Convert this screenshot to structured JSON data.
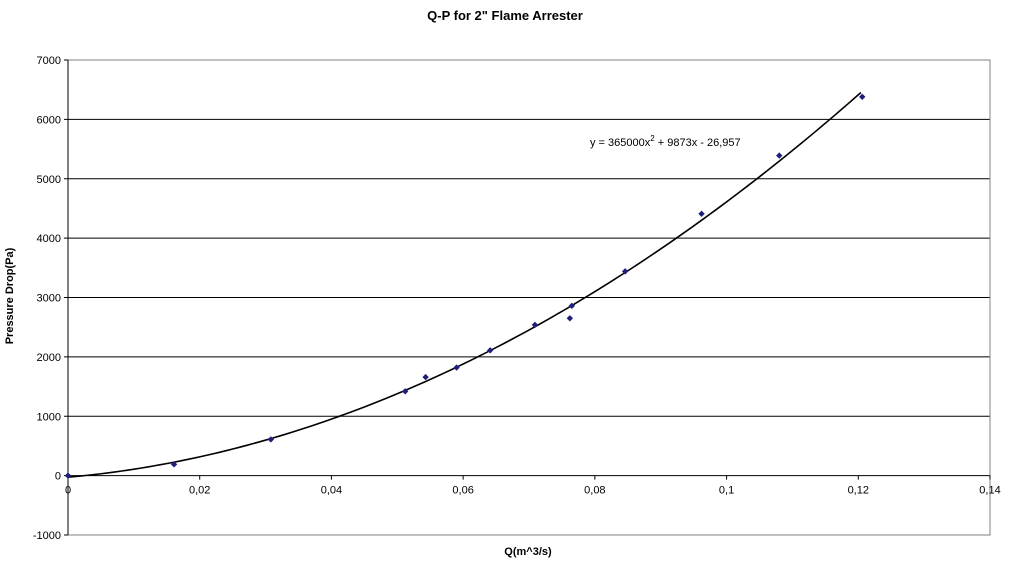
{
  "chart_data": {
    "type": "scatter",
    "title": "Q-P for 2\" Flame Arrester",
    "xlabel": "Q(m^3/s)",
    "ylabel": "Pressure Drop(Pa)",
    "xlim": [
      0,
      0.14
    ],
    "ylim": [
      -1000,
      7000
    ],
    "x_ticks": [
      0,
      0.02,
      0.04,
      0.06,
      0.08,
      0.1,
      0.12,
      0.14
    ],
    "x_tick_labels": [
      "0",
      "0,02",
      "0,04",
      "0,06",
      "0,08",
      "0,1",
      "0,12",
      "0,14"
    ],
    "y_ticks": [
      -1000,
      0,
      1000,
      2000,
      3000,
      4000,
      5000,
      6000,
      7000
    ],
    "y_tick_labels": [
      "-1000",
      "0",
      "1000",
      "2000",
      "3000",
      "4000",
      "5000",
      "6000",
      "7000"
    ],
    "grid": "horizontal",
    "series": [
      {
        "marker_color": "#1f1f7a",
        "points": [
          {
            "x": 0.0,
            "y": 0
          },
          {
            "x": 0.0161,
            "y": 190
          },
          {
            "x": 0.0308,
            "y": 610
          },
          {
            "x": 0.0512,
            "y": 1420
          },
          {
            "x": 0.0543,
            "y": 1660
          },
          {
            "x": 0.059,
            "y": 1820
          },
          {
            "x": 0.0641,
            "y": 2110
          },
          {
            "x": 0.0709,
            "y": 2540
          },
          {
            "x": 0.0762,
            "y": 2650
          },
          {
            "x": 0.0765,
            "y": 2860
          },
          {
            "x": 0.0846,
            "y": 3440
          },
          {
            "x": 0.0962,
            "y": 4410
          },
          {
            "x": 0.108,
            "y": 5390
          },
          {
            "x": 0.1206,
            "y": 6380
          }
        ]
      }
    ],
    "trendline": {
      "type": "polynomial",
      "coefficients": {
        "a": 365000,
        "b": 9873,
        "c": -26.957
      },
      "x_range": [
        0,
        0.1204
      ],
      "color": "#000000",
      "equation_prefix": "y = 365000x",
      "equation_exp": "2",
      "equation_suffix": " + 9873x - 26,957"
    }
  }
}
